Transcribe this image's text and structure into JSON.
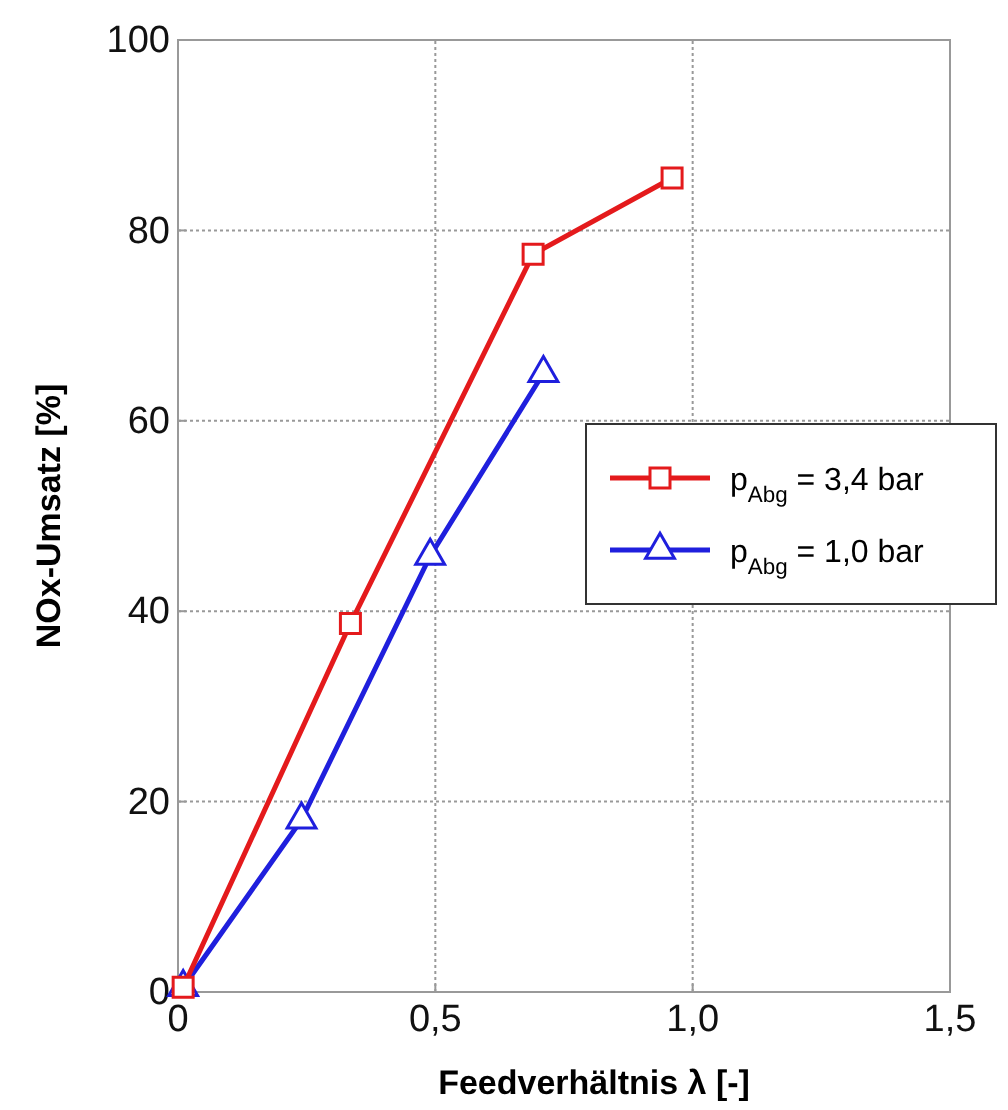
{
  "chart_data": {
    "type": "line",
    "xlabel": "Feedverhältnis λ  [-]",
    "ylabel": "NOx-Umsatz  [%]",
    "xlim": [
      0,
      1.5
    ],
    "xticks": [
      {
        "value": 0,
        "label": "0"
      },
      {
        "value": 0.5,
        "label": "0,5"
      },
      {
        "value": 1,
        "label": "1,0"
      },
      {
        "value": 1.5,
        "label": "1,5"
      }
    ],
    "ylim": [
      0,
      100
    ],
    "yticks": [
      0,
      20,
      40,
      60,
      80,
      100
    ],
    "grid": true,
    "legend": "right",
    "line_style": "solid",
    "series": [
      {
        "name": "p$_{Abg}$ = 3,4 bar",
        "color": "#e41a1c",
        "marker": "square",
        "x": [
          0.01,
          0.335,
          0.69,
          0.96
        ],
        "values": [
          0.5,
          38.7,
          77.5,
          85.5
        ]
      },
      {
        "name": "p$_{Abg}$ = 1,0 bar",
        "color": "#1f1fdd",
        "marker": "triangle",
        "x": [
          0.01,
          0.24,
          0.49,
          0.71
        ],
        "values": [
          0.5,
          18.1,
          45.8,
          65.0
        ]
      }
    ]
  }
}
